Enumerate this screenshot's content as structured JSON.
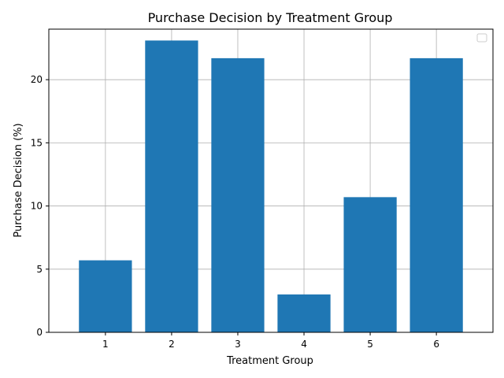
{
  "chart_data": {
    "type": "bar",
    "title": "Purchase Decision by Treatment Group",
    "xlabel": "Treatment Group",
    "ylabel": "Purchase Decision (%)",
    "categories": [
      "1",
      "2",
      "3",
      "4",
      "5",
      "6"
    ],
    "values": [
      5.7,
      23.1,
      21.7,
      3.0,
      10.7,
      21.7
    ],
    "ylim": [
      0,
      24
    ],
    "yticks": [
      0,
      5,
      10,
      15,
      20
    ],
    "grid": true,
    "legend": {
      "placement": "top-right",
      "entries": []
    },
    "colors": {
      "bar": "#1f77b4",
      "grid": "#b0b0b0",
      "axis": "#000000"
    }
  }
}
